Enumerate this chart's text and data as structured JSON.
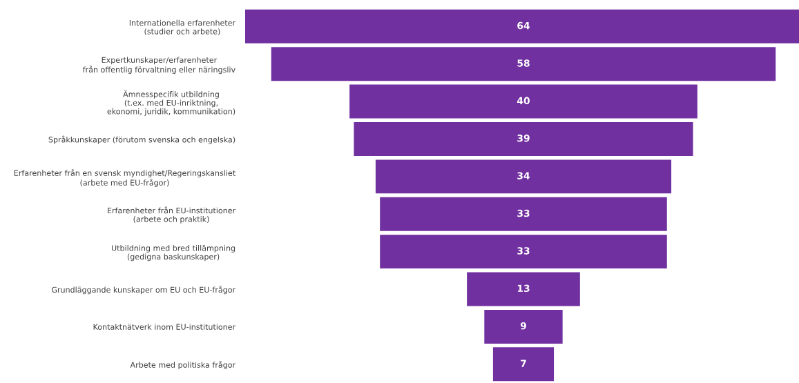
{
  "chart_data": {
    "type": "other",
    "categories": [
      "Internationella erfarenheter\n(studier och arbete)",
      "Expertkunskaper/erfarenheter\nfrån offentlig förvaltning eller näringsliv",
      "Ämnesspecifik utbildning\n(t.ex. med EU-inriktning,\nekonomi, juridik, kommunikation)",
      "Språkkunskaper (förutom svenska och engelska)",
      "Erfarenheter från en svensk myndighet/Regeringskansliet\n(arbete med EU-frågor)",
      "Erfarenheter från EU-institutioner\n(arbete och praktik)",
      "Utbildning med bred tillämpning\n(gedigna baskunskaper)",
      "Grundläggande kunskaper om EU och EU-frågor",
      "Kontaktnätverk inom EU-institutioner",
      "Arbete med politiska frågor"
    ],
    "values": [
      64,
      58,
      40,
      39,
      34,
      33,
      33,
      13,
      9,
      7
    ],
    "color": "#7030a0",
    "data_labels": true
  }
}
